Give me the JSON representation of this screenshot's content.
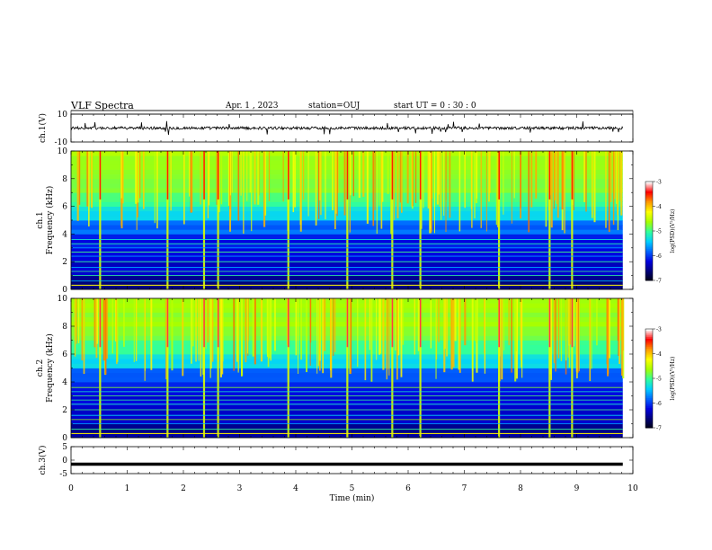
{
  "header": {
    "title": "VLF Spectra",
    "date": "Apr. 1 , 2023",
    "station": "station=OUJ",
    "start": "start UT = 0 : 30 : 0"
  },
  "chart_data": [
    {
      "type": "line",
      "panel": "ch1-waveform",
      "ylabel": "ch.1(V)",
      "ylim": [
        -10,
        10
      ],
      "ytick_labels": [
        "10",
        "-10"
      ],
      "baseline": 0,
      "description_values": {
        "typical_amplitude": 2,
        "spike_max": 5
      },
      "color": "#000000"
    },
    {
      "type": "heatmap",
      "panel": "ch1-spectrogram",
      "ylabel": "ch.1",
      "ylabel2": "Frequency (kHz)",
      "ylim": [
        0,
        10
      ],
      "yticks": [
        0,
        2,
        4,
        6,
        8,
        10
      ],
      "colorbar": {
        "label": "log(PSD)(V²/Hz)",
        "ticks": [
          "-3",
          "-4",
          "-5",
          "-6",
          "-7"
        ],
        "range": [
          -7,
          -3
        ]
      },
      "bright_events_min": [
        0.5,
        1.7,
        2.35,
        2.6,
        3.85,
        4.9,
        5.7,
        6.2,
        7.6,
        8.5,
        8.9
      ]
    },
    {
      "type": "heatmap",
      "panel": "ch2-spectrogram",
      "ylabel": "ch.2",
      "ylabel2": "Frequency (kHz)",
      "ylim": [
        0,
        10
      ],
      "yticks": [
        0,
        2,
        4,
        6,
        8,
        10
      ],
      "colorbar": {
        "label": "log(PSD)(V²/Hz)",
        "ticks": [
          "-3",
          "-4",
          "-5",
          "-6",
          "-7"
        ],
        "range": [
          -7,
          -3
        ]
      },
      "bright_events_min": [
        0.5,
        1.7,
        2.35,
        2.6,
        3.85,
        4.9,
        5.7,
        6.2,
        7.6,
        8.5,
        8.9
      ]
    },
    {
      "type": "line",
      "panel": "ch3-waveform",
      "ylabel": "ch.3(V)",
      "ylim": [
        -5,
        5
      ],
      "ytick_labels": [
        "5",
        "0",
        "-5"
      ],
      "value": -1.5,
      "color": "#000000"
    }
  ],
  "xaxis": {
    "label": "Time (min)",
    "range": [
      0,
      10
    ],
    "tick_labels": [
      "0",
      "1",
      "2",
      "3",
      "4",
      "5",
      "6",
      "7",
      "8",
      "9",
      "10"
    ],
    "data_end_min": 9.82
  },
  "colormap": [
    "#000010",
    "#00007a",
    "#0000e0",
    "#0066ff",
    "#00d0ff",
    "#33ff99",
    "#a8ff00",
    "#ffff00",
    "#ff9900",
    "#ff0000",
    "#ffffff"
  ]
}
